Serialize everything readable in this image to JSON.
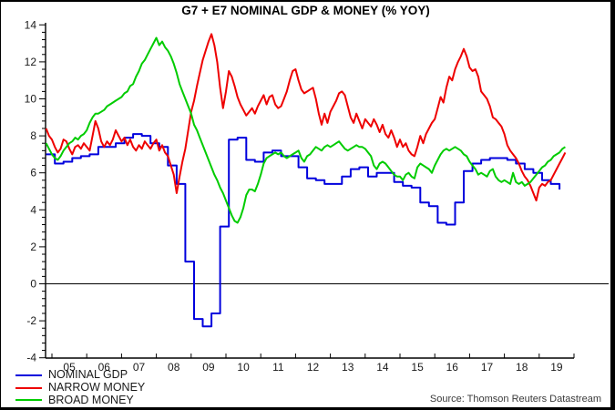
{
  "source": "Source: Thomson Reuters Datastream",
  "chart_data": {
    "type": "line",
    "title": "G7 + E7 NOMINAL GDP & MONEY (% YOY)",
    "grid": false,
    "legend_position": "bottom-left",
    "zero_line": true,
    "x_axis": {
      "unit": "year",
      "start": 2004.83,
      "end": 2020,
      "tick_labels": [
        "05",
        "06",
        "07",
        "08",
        "09",
        "10",
        "11",
        "12",
        "13",
        "14",
        "15",
        "16",
        "17",
        "18",
        "19"
      ]
    },
    "y_axis": {
      "min": -4,
      "max": 14,
      "major_step": 2,
      "minor_step": 0.4,
      "ticks": [
        14,
        12,
        10,
        8,
        6,
        4,
        2,
        0,
        -2,
        -4
      ]
    },
    "series": [
      {
        "id": "nominal-gdp",
        "name": "NOMINAL GDP",
        "color": "#0000dd",
        "frequency": "quarterly",
        "step": true,
        "x_start": 2004.833,
        "x_step": 0.25,
        "values": [
          7.0,
          6.5,
          6.6,
          6.8,
          6.9,
          7.0,
          7.4,
          7.4,
          7.6,
          7.9,
          8.1,
          8.0,
          7.6,
          7.4,
          6.4,
          5.4,
          1.2,
          -1.9,
          -2.3,
          -1.6,
          3.1,
          7.8,
          7.9,
          6.7,
          6.6,
          7.1,
          7.2,
          6.9,
          6.9,
          6.3,
          5.7,
          5.6,
          5.4,
          5.4,
          5.8,
          6.2,
          6.3,
          5.8,
          6.0,
          6.0,
          5.5,
          5.3,
          5.2,
          4.4,
          4.2,
          3.3,
          3.2,
          4.4,
          6.1,
          6.5,
          6.7,
          6.8,
          6.8,
          6.7,
          6.5,
          6.2,
          6.0,
          5.6,
          5.4,
          5.1
        ]
      },
      {
        "id": "narrow-money",
        "name": "NARROW MONEY",
        "color": "#ee0000",
        "frequency": "monthly",
        "step": false,
        "x_start": 2004.833,
        "x_step": 0.0833333,
        "values": [
          8.4,
          8.0,
          7.8,
          7.4,
          7.1,
          7.3,
          7.8,
          7.7,
          7.3,
          7.0,
          7.4,
          7.5,
          7.3,
          7.6,
          7.4,
          7.2,
          8.0,
          8.8,
          8.4,
          7.7,
          7.4,
          7.7,
          7.5,
          7.8,
          8.3,
          8.0,
          7.7,
          7.9,
          7.5,
          7.8,
          7.4,
          7.2,
          7.5,
          7.3,
          7.7,
          7.5,
          7.3,
          7.6,
          7.8,
          7.2,
          7.5,
          7.1,
          6.9,
          6.4,
          5.9,
          4.9,
          5.8,
          6.6,
          7.3,
          8.3,
          9.3,
          9.9,
          10.7,
          11.4,
          12.1,
          12.6,
          13.1,
          13.5,
          12.9,
          12.0,
          10.6,
          9.5,
          10.4,
          11.5,
          11.2,
          10.7,
          10.1,
          9.7,
          9.4,
          9.1,
          9.3,
          9.5,
          9.2,
          9.6,
          9.9,
          10.2,
          9.7,
          10.1,
          10.2,
          9.7,
          9.5,
          9.6,
          10.0,
          10.4,
          11.0,
          11.5,
          11.6,
          11.0,
          10.5,
          10.3,
          10.4,
          10.5,
          10.6,
          10.0,
          9.2,
          8.6,
          9.2,
          8.7,
          9.3,
          9.6,
          9.9,
          10.3,
          10.4,
          10.2,
          9.6,
          9.0,
          8.7,
          9.2,
          8.8,
          8.4,
          8.9,
          8.7,
          8.5,
          8.9,
          8.6,
          8.2,
          8.6,
          8.1,
          7.9,
          8.3,
          7.9,
          7.4,
          7.8,
          7.4,
          7.6,
          7.2,
          7.0,
          6.9,
          7.4,
          8.0,
          7.6,
          8.1,
          8.4,
          8.7,
          8.9,
          9.5,
          10.1,
          9.8,
          10.6,
          11.2,
          11.0,
          11.6,
          12.0,
          12.3,
          12.7,
          12.3,
          11.7,
          11.5,
          11.6,
          11.2,
          10.4,
          10.2,
          10.0,
          9.6,
          9.0,
          8.9,
          8.7,
          8.5,
          8.1,
          7.5,
          7.2,
          7.0,
          6.8,
          6.5,
          6.1,
          5.8,
          5.6,
          5.3,
          4.9,
          4.5,
          5.2,
          5.4,
          5.3,
          5.5,
          5.6,
          5.9,
          6.2,
          6.5,
          6.8,
          7.1
        ]
      },
      {
        "id": "broad-money",
        "name": "BROAD MONEY",
        "color": "#00cc00",
        "frequency": "monthly",
        "step": false,
        "x_start": 2004.833,
        "x_step": 0.0833333,
        "values": [
          7.6,
          7.3,
          7.0,
          6.8,
          6.7,
          6.9,
          7.2,
          7.4,
          7.6,
          7.7,
          7.9,
          7.8,
          8.0,
          8.1,
          8.3,
          8.7,
          9.0,
          9.2,
          9.2,
          9.3,
          9.4,
          9.6,
          9.7,
          9.8,
          9.9,
          10.0,
          10.1,
          10.3,
          10.4,
          10.7,
          10.8,
          11.2,
          11.5,
          11.9,
          12.1,
          12.4,
          12.7,
          13.0,
          13.3,
          12.9,
          13.1,
          12.8,
          12.6,
          12.3,
          11.9,
          11.4,
          10.8,
          10.4,
          10.0,
          9.6,
          9.2,
          8.6,
          8.3,
          7.9,
          7.5,
          7.1,
          6.7,
          6.3,
          5.9,
          5.6,
          5.2,
          4.9,
          4.5,
          4.1,
          3.7,
          3.4,
          3.3,
          3.6,
          4.1,
          4.8,
          5.1,
          5.1,
          5.0,
          5.4,
          5.9,
          6.5,
          6.8,
          6.9,
          7.0,
          7.1,
          7.0,
          7.1,
          6.9,
          6.8,
          6.9,
          7.0,
          7.1,
          7.2,
          6.8,
          6.6,
          6.9,
          7.0,
          7.2,
          7.4,
          7.3,
          7.2,
          7.4,
          7.5,
          7.4,
          7.5,
          7.6,
          7.7,
          7.5,
          7.3,
          7.2,
          7.3,
          7.4,
          7.5,
          7.4,
          7.4,
          7.3,
          7.1,
          6.9,
          6.4,
          6.2,
          6.5,
          6.6,
          6.5,
          6.3,
          6.1,
          5.9,
          5.8,
          5.8,
          5.6,
          5.9,
          6.0,
          5.8,
          5.7,
          6.3,
          6.5,
          6.4,
          6.3,
          6.2,
          6.0,
          6.4,
          6.7,
          7.0,
          7.2,
          7.3,
          7.2,
          7.3,
          7.4,
          7.3,
          7.2,
          7.0,
          6.9,
          6.6,
          6.4,
          6.2,
          5.9,
          6.0,
          5.9,
          5.8,
          6.1,
          6.2,
          5.8,
          5.6,
          5.5,
          5.6,
          5.5,
          5.4,
          6.0,
          5.5,
          5.4,
          5.5,
          5.3,
          5.4,
          5.5,
          5.7,
          5.9,
          6.1,
          6.3,
          6.4,
          6.6,
          6.7,
          6.9,
          7.0,
          7.1,
          7.3,
          7.4
        ]
      }
    ]
  }
}
